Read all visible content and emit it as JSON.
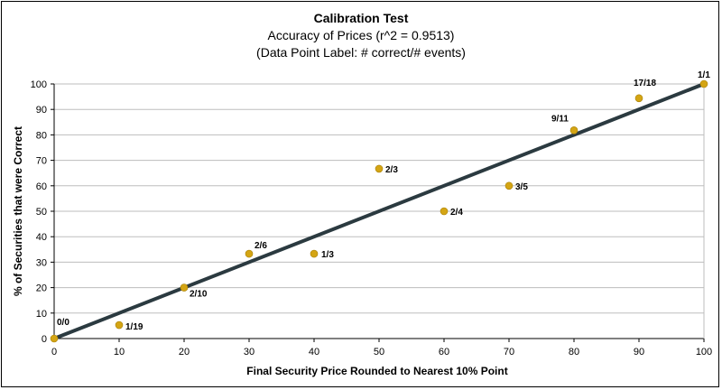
{
  "chart_data": {
    "type": "scatter",
    "title": "Calibration Test",
    "subtitle": "Accuracy of Prices (r^2 = 0.9513)",
    "subtitle2": "(Data Point Label:  # correct/# events)",
    "xlabel": "Final Security Price Rounded to Nearest 10% Point",
    "ylabel": "% of Securities that were Correct",
    "xlim": [
      0,
      100
    ],
    "ylim": [
      0,
      100
    ],
    "xticks": [
      0,
      10,
      20,
      30,
      40,
      50,
      60,
      70,
      80,
      90,
      100
    ],
    "yticks": [
      0,
      10,
      20,
      30,
      40,
      50,
      60,
      70,
      80,
      90,
      100
    ],
    "grid": "horizontal",
    "legend": "none",
    "points": [
      {
        "x": 0,
        "y": 0,
        "label": "0/0"
      },
      {
        "x": 10,
        "y": 5.3,
        "label": "1/19"
      },
      {
        "x": 20,
        "y": 20,
        "label": "2/10"
      },
      {
        "x": 30,
        "y": 33.3,
        "label": "2/6"
      },
      {
        "x": 40,
        "y": 33.3,
        "label": "1/3"
      },
      {
        "x": 50,
        "y": 66.7,
        "label": "2/3"
      },
      {
        "x": 60,
        "y": 50,
        "label": "2/4"
      },
      {
        "x": 70,
        "y": 60,
        "label": "3/5"
      },
      {
        "x": 80,
        "y": 81.8,
        "label": "9/11"
      },
      {
        "x": 90,
        "y": 94.4,
        "label": "17/18"
      },
      {
        "x": 100,
        "y": 100,
        "label": "1/1"
      }
    ],
    "reference_line": {
      "from": [
        0,
        0
      ],
      "to": [
        100,
        100
      ]
    },
    "colors": {
      "line": "#2b3a40",
      "point": "#d4a514",
      "grid": "#bdbdbd"
    }
  }
}
